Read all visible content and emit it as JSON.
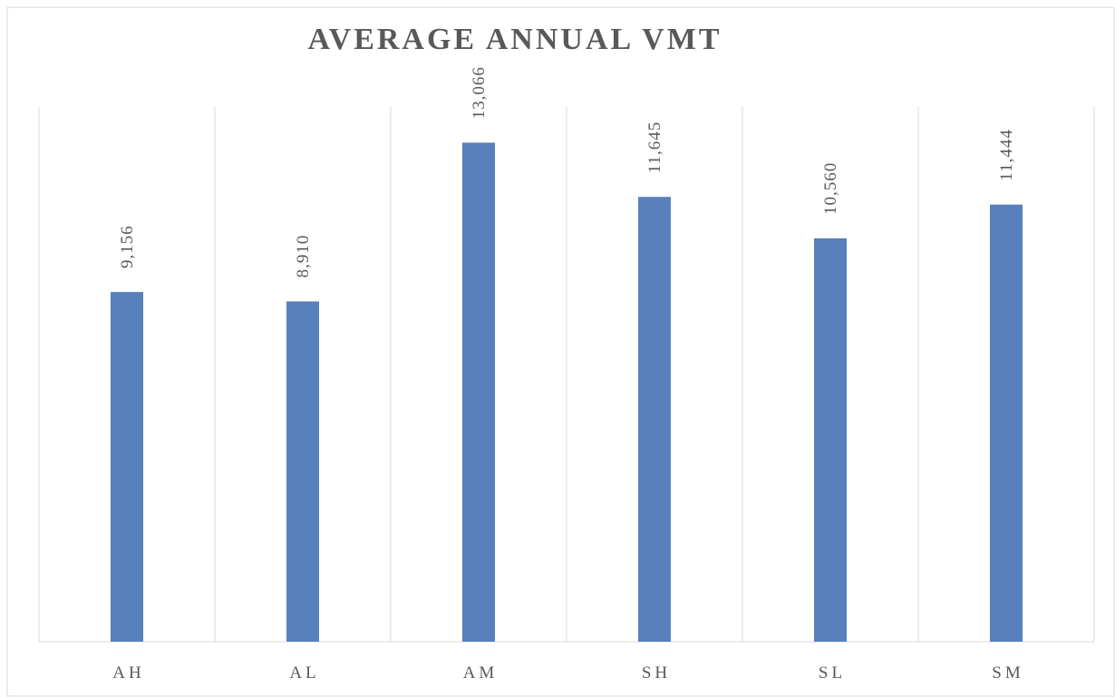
{
  "chart_data": {
    "type": "bar",
    "title": "AVERAGE ANNUAL VMT",
    "categories": [
      "AH",
      "AL",
      "AM",
      "SH",
      "SL",
      "SM"
    ],
    "values": [
      9156,
      8910,
      13066,
      11645,
      10560,
      11444
    ],
    "value_labels": [
      "9,156",
      "8,910",
      "13,066",
      "11,645",
      "10,560",
      "11,444"
    ],
    "color": "#5880bb",
    "ylim": [
      0,
      14000
    ]
  }
}
